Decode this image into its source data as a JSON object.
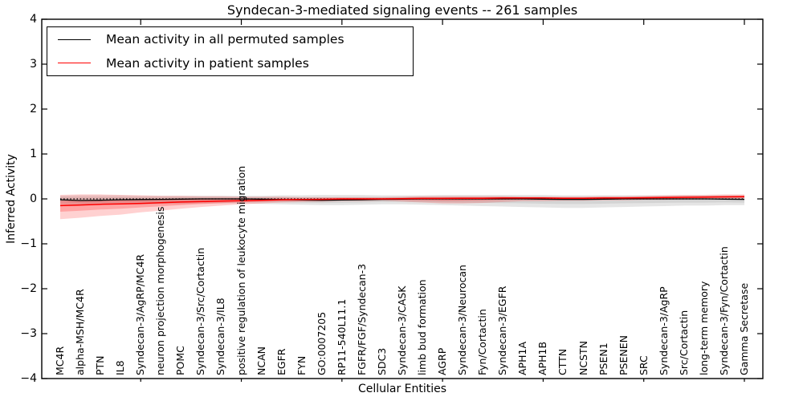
{
  "chart_data": {
    "type": "line",
    "title": "Syndecan-3-mediated signaling events -- 261 samples",
    "xlabel": "Cellular Entities",
    "ylabel": "Inferred Activity",
    "ylim": [
      -4,
      4
    ],
    "grid": false,
    "legend_position": "upper left",
    "colors": {
      "patient": "#ff0000",
      "permuted": "#000000",
      "patient_band": "rgba(255,0,0,0.20)",
      "permuted_band": "rgba(0,0,0,0.10)"
    },
    "yticks": {
      "values": [
        4,
        3,
        2,
        1,
        0,
        -1,
        -2,
        -3,
        -4
      ],
      "labels": [
        "4",
        "3",
        "2",
        "1",
        "0",
        "−1",
        "−2",
        "−3",
        "−4"
      ]
    },
    "legend": [
      {
        "label": "Mean activity in all permuted samples",
        "color": "#000000"
      },
      {
        "label": "Mean activity in patient samples",
        "color": "#ff0000"
      }
    ],
    "categories": [
      "MC4R",
      "alpha-MSH/MC4R",
      "PTN",
      "IL8",
      "Syndecan-3/AgRP/MC4R",
      "neuron projection morphogenesis",
      "POMC",
      "Syndecan-3/Src/Cortactin",
      "Syndecan-3/IL8",
      "positive regulation of leukocyte migration",
      "NCAN",
      "EGFR",
      "FYN",
      "GO:0007205",
      "RP11-540L11.1",
      "FGFR/FGF/Syndecan-3",
      "SDC3",
      "Syndecan-3/CASK",
      "limb bud formation",
      "AGRP",
      "Syndecan-3/Neurocan",
      "Fyn/Cortactin",
      "Syndecan-3/EGFR",
      "APH1A",
      "APH1B",
      "CTTN",
      "NCSTN",
      "PSEN1",
      "PSENEN",
      "SRC",
      "Syndecan-3/AgRP",
      "Src/Cortactin",
      "long-term memory",
      "Syndecan-3/Fyn/Cortactin",
      "Gamma Secretase"
    ],
    "series": [
      {
        "name": "Mean activity in patient samples",
        "values": [
          -0.15,
          -0.135,
          -0.12,
          -0.11,
          -0.1,
          -0.085,
          -0.07,
          -0.06,
          -0.05,
          -0.04,
          -0.03,
          -0.02,
          -0.015,
          -0.01,
          0.0,
          0.0,
          0.0,
          0.005,
          0.01,
          0.01,
          0.015,
          0.015,
          0.02,
          0.02,
          0.02,
          0.015,
          0.015,
          0.02,
          0.02,
          0.025,
          0.03,
          0.035,
          0.04,
          0.045,
          0.05
        ],
        "band_lo": [
          -0.45,
          -0.42,
          -0.38,
          -0.35,
          -0.3,
          -0.26,
          -0.22,
          -0.18,
          -0.15,
          -0.12,
          -0.1,
          -0.08,
          -0.07,
          -0.06,
          -0.05,
          -0.05,
          -0.04,
          -0.06,
          -0.08,
          -0.1,
          -0.1,
          -0.09,
          -0.07,
          -0.05,
          -0.05,
          -0.04,
          -0.04,
          -0.03,
          -0.03,
          -0.02,
          -0.02,
          -0.01,
          -0.01,
          0.0,
          0.0
        ],
        "band_hi": [
          0.09,
          0.1,
          0.1,
          0.09,
          0.08,
          0.07,
          0.07,
          0.06,
          0.06,
          0.05,
          0.05,
          0.05,
          0.04,
          0.04,
          0.04,
          0.04,
          0.04,
          0.05,
          0.06,
          0.06,
          0.06,
          0.06,
          0.06,
          0.05,
          0.05,
          0.05,
          0.05,
          0.06,
          0.06,
          0.07,
          0.08,
          0.09,
          0.09,
          0.1,
          0.1
        ]
      },
      {
        "name": "Mean activity in all permuted samples",
        "values": [
          -0.02,
          -0.035,
          -0.03,
          -0.02,
          -0.015,
          -0.01,
          -0.005,
          0.0,
          0.0,
          0.0,
          -0.005,
          -0.015,
          -0.025,
          -0.03,
          -0.025,
          -0.02,
          -0.01,
          -0.005,
          0.0,
          0.0,
          0.0,
          0.0,
          0.0,
          0.0,
          -0.005,
          -0.01,
          -0.01,
          -0.005,
          0.0,
          0.0,
          0.0,
          0.0,
          0.0,
          -0.005,
          -0.01
        ],
        "band_lo": [
          -0.12,
          -0.14,
          -0.13,
          -0.12,
          -0.12,
          -0.11,
          -0.11,
          -0.1,
          -0.1,
          -0.1,
          -0.11,
          -0.12,
          -0.13,
          -0.14,
          -0.14,
          -0.13,
          -0.12,
          -0.12,
          -0.13,
          -0.14,
          -0.15,
          -0.16,
          -0.17,
          -0.18,
          -0.19,
          -0.2,
          -0.2,
          -0.19,
          -0.18,
          -0.17,
          -0.16,
          -0.15,
          -0.15,
          -0.14,
          -0.14
        ],
        "band_hi": [
          0.07,
          0.08,
          0.08,
          0.08,
          0.07,
          0.07,
          0.07,
          0.07,
          0.07,
          0.07,
          0.07,
          0.08,
          0.08,
          0.09,
          0.09,
          0.09,
          0.08,
          0.08,
          0.08,
          0.09,
          0.09,
          0.09,
          0.09,
          0.09,
          0.09,
          0.08,
          0.08,
          0.08,
          0.08,
          0.08,
          0.08,
          0.08,
          0.08,
          0.08,
          0.08
        ]
      }
    ],
    "zero_line": 0
  }
}
